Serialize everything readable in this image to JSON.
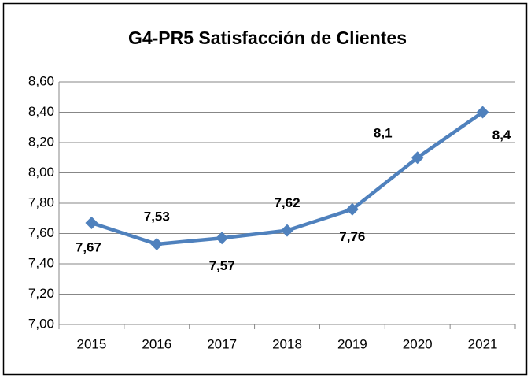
{
  "chart_data": {
    "type": "line",
    "title": "G4-PR5 Satisfacción de Clientes",
    "categories": [
      "2015",
      "2016",
      "2017",
      "2018",
      "2019",
      "2020",
      "2021"
    ],
    "series": [
      {
        "name": "Satisfacción",
        "color": "#4f81bd",
        "values": [
          7.67,
          7.53,
          7.57,
          7.62,
          7.76,
          8.1,
          8.4
        ],
        "value_labels": [
          "7,67",
          "7,53",
          "7,57",
          "7,62",
          "7,76",
          "8,1",
          "8,4"
        ]
      }
    ],
    "ylim": [
      7.0,
      8.6
    ],
    "yticks": [
      {
        "value": 7.0,
        "label": "7,00"
      },
      {
        "value": 7.2,
        "label": "7,20"
      },
      {
        "value": 7.4,
        "label": "7,40"
      },
      {
        "value": 7.6,
        "label": "7,60"
      },
      {
        "value": 7.8,
        "label": "7,80"
      },
      {
        "value": 8.0,
        "label": "8,00"
      },
      {
        "value": 8.2,
        "label": "8,20"
      },
      {
        "value": 8.4,
        "label": "8,40"
      },
      {
        "value": 8.6,
        "label": "8,60"
      }
    ],
    "grid": true
  }
}
